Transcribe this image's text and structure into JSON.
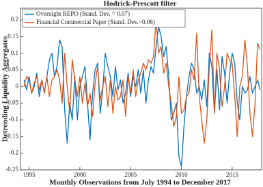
{
  "chart_data": {
    "type": "line",
    "title": "Hodrick-Prescott filter",
    "xlabel": "Monthly Observations from July 1994 to December 2017",
    "ylabel": "Detrending Liquidity Aggregates",
    "x": [
      1994.5,
      1994.75,
      1995,
      1995.25,
      1995.5,
      1995.75,
      1996,
      1996.25,
      1996.5,
      1996.75,
      1997,
      1997.25,
      1997.5,
      1997.75,
      1998,
      1998.25,
      1998.5,
      1998.75,
      1999,
      1999.25,
      1999.5,
      1999.75,
      2000,
      2000.25,
      2000.5,
      2000.75,
      2001,
      2001.25,
      2001.5,
      2001.75,
      2002,
      2002.25,
      2002.5,
      2002.75,
      2003,
      2003.25,
      2003.5,
      2003.75,
      2004,
      2004.25,
      2004.5,
      2004.75,
      2005,
      2005.25,
      2005.5,
      2005.75,
      2006,
      2006.25,
      2006.5,
      2006.75,
      2007,
      2007.25,
      2007.5,
      2007.75,
      2008,
      2008.25,
      2008.5,
      2008.75,
      2009,
      2009.25,
      2009.5,
      2009.75,
      2010,
      2010.25,
      2010.5,
      2010.75,
      2011,
      2011.25,
      2011.5,
      2011.75,
      2012,
      2012.25,
      2012.5,
      2012.75,
      2013,
      2013.25,
      2013.5,
      2013.75,
      2014,
      2014.25,
      2014.5,
      2014.75,
      2015,
      2015.25,
      2015.5,
      2015.75,
      2016,
      2016.25,
      2016.5,
      2016.75,
      2017,
      2017.25,
      2017.5,
      2017.75
    ],
    "series": [
      {
        "name": "Overnight REPO (Stand. Dev. = 0.07)",
        "color": "#0072bd",
        "values": [
          0.02,
          -0.01,
          0.03,
          -0.02,
          0.0,
          0.04,
          -0.03,
          0.02,
          -0.02,
          0.03,
          0.08,
          0.1,
          0.03,
          0.06,
          0.14,
          0.12,
          -0.07,
          -0.17,
          -0.05,
          -0.1,
          0.03,
          -0.1,
          0.0,
          0.03,
          0.06,
          -0.05,
          -0.16,
          -0.02,
          0.05,
          0.07,
          -0.08,
          -0.01,
          0.1,
          0.06,
          0.03,
          -0.03,
          0.06,
          -0.01,
          0.02,
          -0.05,
          -0.02,
          0.04,
          -0.03,
          0.03,
          0.0,
          0.05,
          -0.02,
          0.05,
          -0.05,
          0.02,
          0.06,
          0.04,
          0.12,
          0.18,
          0.15,
          0.09,
          0.12,
          0.03,
          -0.1,
          -0.08,
          -0.05,
          -0.21,
          -0.24,
          -0.12,
          -0.03,
          0.03,
          0.07,
          0.05,
          -0.02,
          0.0,
          -0.04,
          0.02,
          -0.06,
          0.1,
          0.06,
          -0.08,
          0.05,
          -0.07,
          0.09,
          0.04,
          -0.05,
          0.04,
          0.1,
          0.07,
          -0.05,
          -0.1,
          0.0,
          -0.02,
          -0.01,
          0.03,
          -0.02,
          0.0,
          0.02,
          -0.01
        ]
      },
      {
        "name": "Financial Commercial Paper (Stand. Dev.=0.06)",
        "color": "#d95319",
        "values": [
          0.0,
          0.03,
          0.02,
          -0.02,
          0.01,
          0.03,
          -0.01,
          0.02,
          -0.02,
          0.03,
          -0.03,
          0.02,
          0.03,
          0.05,
          0.02,
          -0.05,
          0.1,
          0.0,
          -0.08,
          0.08,
          0.02,
          -0.03,
          0.03,
          -0.05,
          0.01,
          -0.06,
          -0.02,
          -0.09,
          0.01,
          0.06,
          -0.04,
          0.0,
          0.03,
          -0.06,
          0.02,
          -0.08,
          0.0,
          -0.04,
          -0.03,
          0.02,
          -0.09,
          0.03,
          -0.02,
          0.05,
          -0.03,
          0.02,
          0.04,
          0.07,
          0.05,
          0.08,
          0.07,
          0.09,
          0.2,
          0.1,
          0.12,
          0.04,
          0.07,
          0.0,
          -0.05,
          -0.12,
          -0.09,
          0.03,
          -0.08,
          -0.07,
          -0.03,
          -0.02,
          0.05,
          0.02,
          0.16,
          -0.03,
          -0.1,
          -0.17,
          -0.1,
          0.06,
          0.17,
          -0.08,
          0.1,
          0.05,
          -0.06,
          0.0,
          0.1,
          0.08,
          0.07,
          -0.03,
          -0.15,
          0.0,
          0.03,
          0.14,
          0.06,
          -0.08,
          -0.15,
          -0.05,
          0.13,
          0.11
        ]
      }
    ],
    "xlim": [
      1994.15,
      2017.9
    ],
    "xticks": [
      1995,
      2000,
      2005,
      2010,
      2015
    ],
    "ylim": [
      -0.25,
      0.235
    ],
    "yticks": [
      -0.25,
      -0.2,
      -0.15,
      -0.1,
      -0.05,
      0,
      0.05,
      0.1,
      0.15,
      0.2
    ],
    "grid": false,
    "legend": "upper left"
  }
}
